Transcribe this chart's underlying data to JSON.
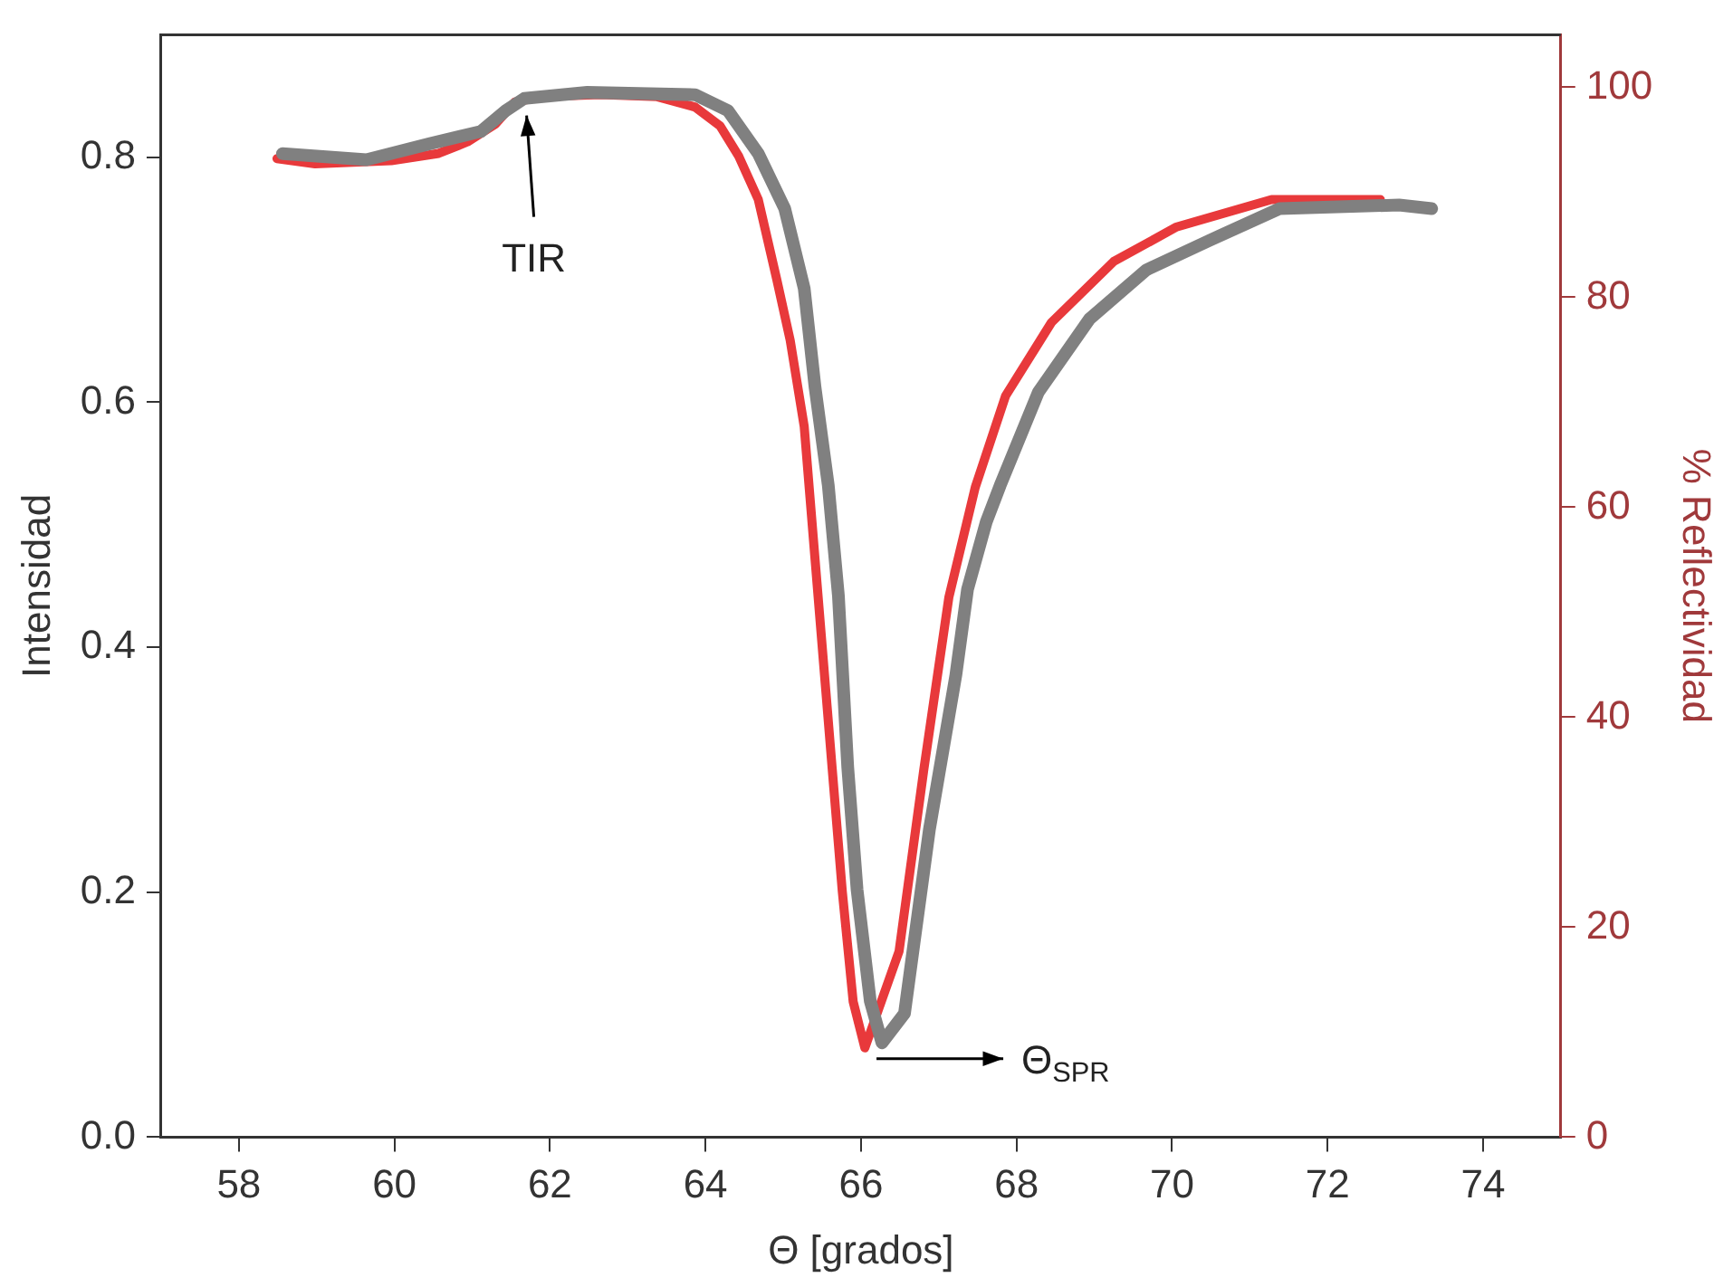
{
  "chart_data": {
    "type": "line",
    "xlabel": "Θ [grados]",
    "ylabel": "Intensidad",
    "y2label": "% Reflectividad",
    "xlim": [
      57,
      75
    ],
    "xticks": [
      58,
      60,
      62,
      64,
      66,
      68,
      70,
      72,
      74
    ],
    "ylim": [
      0,
      0.9
    ],
    "yticks": [
      {
        "value": 0,
        "label": "0.0"
      },
      {
        "value": 0.2,
        "label": "0.2"
      },
      {
        "value": 0.4,
        "label": "0.4"
      },
      {
        "value": 0.6,
        "label": "0.6"
      },
      {
        "value": 0.8,
        "label": "0.8"
      }
    ],
    "y2lim": [
      0,
      105
    ],
    "y2ticks": [
      0,
      20,
      40,
      60,
      80,
      100
    ],
    "grid": false,
    "legend": false,
    "marker": "none",
    "line_style": "solid",
    "series": [
      {
        "color": "#e8393b",
        "axis": "y2",
        "x": [
          58.49,
          58.98,
          59.96,
          60.57,
          60.94,
          61.3,
          61.55,
          61.91,
          62.65,
          63.38,
          63.87,
          64.19,
          64.43,
          64.68,
          64.92,
          65.09,
          65.27,
          65.41,
          65.63,
          65.76,
          65.9,
          66.05,
          66.49,
          66.81,
          67.13,
          67.47,
          67.86,
          68.45,
          69.25,
          70.06,
          71.28,
          72.68
        ],
        "values": [
          93.2,
          92.7,
          93.0,
          93.7,
          94.8,
          96.5,
          98.6,
          99.1,
          99.3,
          99.1,
          98.1,
          96.3,
          93.4,
          89.3,
          81.6,
          75.9,
          67.7,
          55,
          35.1,
          23.4,
          12.9,
          8.5,
          17.7,
          35.1,
          51.4,
          61.9,
          70.6,
          77.6,
          83.4,
          86.7,
          89.3,
          89.3
        ]
      },
      {
        "color": "#808080",
        "x": [
          58.56,
          59.64,
          60.45,
          61.11,
          61.43,
          61.67,
          62.48,
          63.87,
          64.29,
          64.68,
          65.02,
          65.27,
          65.41,
          65.58,
          65.71,
          65.83,
          65.95,
          66.12,
          66.27,
          66.56,
          66.88,
          67.22,
          67.37,
          67.61,
          67.79,
          68.28,
          68.94,
          69.67,
          70.48,
          71.38,
          72.92,
          73.34
        ],
        "values": [
          0.803,
          0.798,
          0.811,
          0.821,
          0.838,
          0.848,
          0.853,
          0.851,
          0.838,
          0.803,
          0.758,
          0.693,
          0.612,
          0.532,
          0.442,
          0.302,
          0.202,
          0.111,
          0.077,
          0.101,
          0.251,
          0.377,
          0.447,
          0.502,
          0.532,
          0.608,
          0.668,
          0.708,
          0.732,
          0.758,
          0.761,
          0.758
        ]
      }
    ],
    "annotations": [
      {
        "text": "TIR",
        "x": 61.7,
        "y": 0.84
      },
      {
        "text": "Θ$_{SPR}$",
        "x": 66.2,
        "y": 0.07
      }
    ]
  }
}
